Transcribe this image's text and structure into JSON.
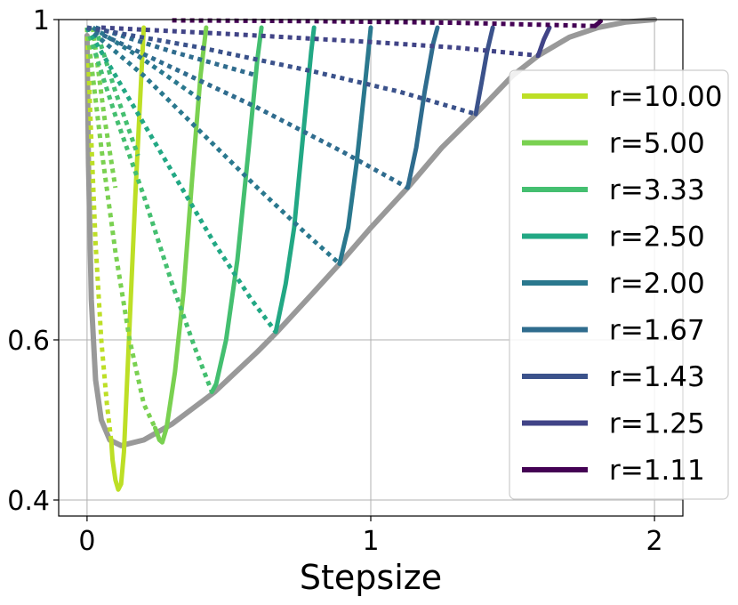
{
  "chart_data": {
    "type": "line",
    "xlabel": "Stepsize",
    "ylabel": "",
    "xlim": [
      -0.1,
      2.1
    ],
    "ylim": [
      0.38,
      1.0
    ],
    "x_ticks": [
      0,
      1,
      2
    ],
    "x_tick_labels": [
      "0",
      "1",
      "2"
    ],
    "y_ticks": [
      0.4,
      0.6,
      1.0
    ],
    "y_tick_labels": [
      "0.4",
      "0.6",
      "1"
    ],
    "grid": true,
    "legend_position": "right",
    "envelope": {
      "color": "#999999",
      "points": [
        [
          0,
          0.98
        ],
        [
          0.005,
          0.82
        ],
        [
          0.015,
          0.65
        ],
        [
          0.03,
          0.55
        ],
        [
          0.05,
          0.5
        ],
        [
          0.08,
          0.475
        ],
        [
          0.12,
          0.468
        ],
        [
          0.2,
          0.475
        ],
        [
          0.3,
          0.495
        ],
        [
          0.45,
          0.535
        ],
        [
          0.6,
          0.585
        ],
        [
          0.67,
          0.61
        ],
        [
          0.8,
          0.66
        ],
        [
          0.89,
          0.695
        ],
        [
          1.0,
          0.74
        ],
        [
          1.13,
          0.79
        ],
        [
          1.25,
          0.84
        ],
        [
          1.37,
          0.882
        ],
        [
          1.5,
          0.93
        ],
        [
          1.59,
          0.955
        ],
        [
          1.7,
          0.978
        ],
        [
          1.8,
          0.99
        ],
        [
          1.9,
          0.997
        ],
        [
          2.0,
          1.0
        ]
      ]
    },
    "series": [
      {
        "name": "r=10.00",
        "color": "#bddf26",
        "solid": [
          [
            0.085,
            0.475
          ],
          [
            0.09,
            0.45
          ],
          [
            0.1,
            0.425
          ],
          [
            0.11,
            0.413
          ],
          [
            0.12,
            0.42
          ],
          [
            0.13,
            0.46
          ],
          [
            0.15,
            0.62
          ],
          [
            0.17,
            0.78
          ],
          [
            0.19,
            0.92
          ],
          [
            0.2,
            0.99
          ]
        ],
        "dotted": [
          [
            [
              0,
              0.99
            ],
            [
              0.015,
              0.85
            ],
            [
              0.03,
              0.72
            ],
            [
              0.05,
              0.6
            ],
            [
              0.07,
              0.52
            ],
            [
              0.085,
              0.475
            ]
          ]
        ]
      },
      {
        "name": "r=5.00",
        "color": "#7ad151",
        "solid": [
          [
            0.24,
            0.49
          ],
          [
            0.255,
            0.475
          ],
          [
            0.265,
            0.472
          ],
          [
            0.28,
            0.49
          ],
          [
            0.31,
            0.56
          ],
          [
            0.34,
            0.66
          ],
          [
            0.37,
            0.8
          ],
          [
            0.4,
            0.93
          ],
          [
            0.42,
            0.99
          ]
        ],
        "dotted": [
          [
            [
              0,
              0.99
            ],
            [
              0.05,
              0.84
            ],
            [
              0.1,
              0.71
            ],
            [
              0.15,
              0.6
            ],
            [
              0.2,
              0.52
            ],
            [
              0.24,
              0.49
            ]
          ],
          [
            [
              0.02,
              0.99
            ],
            [
              0.06,
              0.88
            ],
            [
              0.1,
              0.79
            ]
          ]
        ]
      },
      {
        "name": "r=3.33",
        "color": "#44bf70",
        "solid": [
          [
            0.44,
            0.535
          ],
          [
            0.455,
            0.545
          ],
          [
            0.49,
            0.6
          ],
          [
            0.53,
            0.7
          ],
          [
            0.57,
            0.84
          ],
          [
            0.6,
            0.95
          ],
          [
            0.615,
            0.99
          ]
        ],
        "dotted": [
          [
            [
              0,
              0.99
            ],
            [
              0.1,
              0.88
            ],
            [
              0.2,
              0.78
            ],
            [
              0.3,
              0.67
            ],
            [
              0.38,
              0.59
            ],
            [
              0.44,
              0.535
            ]
          ],
          [
            [
              0.03,
              0.99
            ],
            [
              0.1,
              0.91
            ],
            [
              0.18,
              0.83
            ]
          ]
        ]
      },
      {
        "name": "r=2.50",
        "color": "#22a884",
        "solid": [
          [
            0.665,
            0.61
          ],
          [
            0.7,
            0.67
          ],
          [
            0.73,
            0.74
          ],
          [
            0.76,
            0.85
          ],
          [
            0.79,
            0.96
          ],
          [
            0.8,
            0.99
          ]
        ],
        "dotted": [
          [
            [
              0,
              0.99
            ],
            [
              0.15,
              0.9
            ],
            [
              0.3,
              0.81
            ],
            [
              0.45,
              0.72
            ],
            [
              0.58,
              0.65
            ],
            [
              0.665,
              0.61
            ]
          ]
        ]
      },
      {
        "name": "r=2.00",
        "color": "#2a788e",
        "solid": [
          [
            0.89,
            0.695
          ],
          [
            0.92,
            0.74
          ],
          [
            0.95,
            0.82
          ],
          [
            0.98,
            0.92
          ],
          [
            1.0,
            0.99
          ]
        ],
        "dotted": [
          [
            [
              0,
              0.99
            ],
            [
              0.2,
              0.93
            ],
            [
              0.4,
              0.86
            ],
            [
              0.6,
              0.79
            ],
            [
              0.78,
              0.73
            ],
            [
              0.89,
              0.695
            ]
          ],
          [
            [
              0.02,
              0.99
            ],
            [
              0.2,
              0.95
            ],
            [
              0.4,
              0.9
            ]
          ]
        ]
      },
      {
        "name": "r=1.67",
        "color": "#2f6c8e",
        "solid": [
          [
            1.13,
            0.79
          ],
          [
            1.16,
            0.84
          ],
          [
            1.19,
            0.91
          ],
          [
            1.22,
            0.97
          ],
          [
            1.235,
            0.99
          ]
        ],
        "dotted": [
          [
            [
              0,
              0.99
            ],
            [
              0.3,
              0.94
            ],
            [
              0.6,
              0.89
            ],
            [
              0.9,
              0.835
            ],
            [
              1.13,
              0.79
            ]
          ],
          [
            [
              0.03,
              0.99
            ],
            [
              0.3,
              0.96
            ],
            [
              0.6,
              0.93
            ]
          ]
        ]
      },
      {
        "name": "r=1.43",
        "color": "#3b528b",
        "solid": [
          [
            1.37,
            0.882
          ],
          [
            1.39,
            0.92
          ],
          [
            1.41,
            0.96
          ],
          [
            1.43,
            0.99
          ]
        ],
        "dotted": [
          [
            [
              0,
              0.99
            ],
            [
              0.4,
              0.965
            ],
            [
              0.8,
              0.935
            ],
            [
              1.1,
              0.91
            ],
            [
              1.37,
              0.882
            ]
          ]
        ]
      },
      {
        "name": "r=1.25",
        "color": "#414487",
        "solid": [
          [
            1.59,
            0.955
          ],
          [
            1.61,
            0.975
          ],
          [
            1.63,
            0.99
          ]
        ],
        "dotted": [
          [
            [
              0.05,
              0.99
            ],
            [
              0.5,
              0.982
            ],
            [
              1.0,
              0.972
            ],
            [
              1.3,
              0.965
            ],
            [
              1.59,
              0.955
            ]
          ]
        ]
      },
      {
        "name": "r=1.11",
        "color": "#440154",
        "solid": [
          [
            1.79,
            0.992
          ],
          [
            1.8,
            0.995
          ],
          [
            1.81,
            0.998
          ]
        ],
        "dotted": [
          [
            [
              0.3,
              0.999
            ],
            [
              0.8,
              0.998
            ],
            [
              1.3,
              0.996
            ],
            [
              1.79,
              0.992
            ]
          ]
        ]
      }
    ]
  }
}
